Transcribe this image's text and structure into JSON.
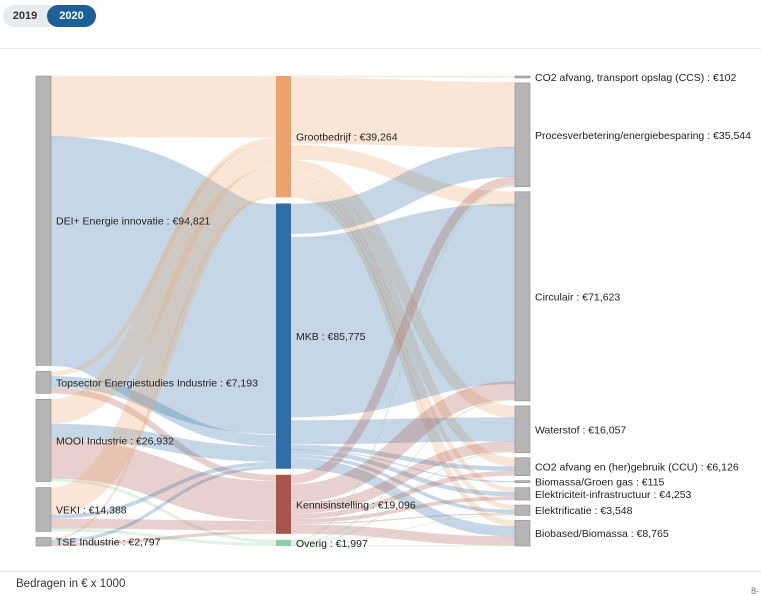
{
  "year_toggle": {
    "options": [
      "2019",
      "2020"
    ],
    "selected": "2020"
  },
  "footnote": "Bedragen in € x 1000",
  "corner_mark": "8-",
  "colors": {
    "node_grey": "#b5b5b5",
    "grootbedrijf": "#eaa46b",
    "mkb": "#2f6fa5",
    "kennisinstelling": "#a8564c",
    "overig": "#8fcfa2"
  },
  "chart_data": {
    "type": "sankey",
    "unit": "€ x 1000",
    "nodes": [
      {
        "id": "dei",
        "label": "DEI+ Energie innovatie : €94,821",
        "value": 94821,
        "column": 0,
        "color": "grey"
      },
      {
        "id": "tse_studies",
        "label": "Topsector Energiestudies Industrie : €7,193",
        "value": 7193,
        "column": 0,
        "color": "grey"
      },
      {
        "id": "mooi",
        "label": "MOOI Industrie : €26,932",
        "value": 26932,
        "column": 0,
        "color": "grey"
      },
      {
        "id": "veki",
        "label": "VEKI : €14,388",
        "value": 14388,
        "column": 0,
        "color": "grey"
      },
      {
        "id": "tse_ind",
        "label": "TSE Industrie : €2,797",
        "value": 2797,
        "column": 0,
        "color": "grey"
      },
      {
        "id": "groot",
        "label": "Grootbedrijf : €39,264",
        "value": 39264,
        "column": 1,
        "color": "grootbedrijf"
      },
      {
        "id": "mkb",
        "label": "MKB : €85,775",
        "value": 85775,
        "column": 1,
        "color": "mkb"
      },
      {
        "id": "kennis",
        "label": "Kennisinstelling : €19,096",
        "value": 19096,
        "column": 1,
        "color": "kennisinstelling"
      },
      {
        "id": "overig",
        "label": "Overig : €1,997",
        "value": 1997,
        "column": 1,
        "color": "overig"
      },
      {
        "id": "ccs",
        "label": "CO2 afvang, transport opslag (CCS) : €102",
        "value": 102,
        "column": 2,
        "color": "grey"
      },
      {
        "id": "proces",
        "label": "Procesverbetering/energiebesparing : €35,544",
        "value": 35544,
        "column": 2,
        "color": "grey"
      },
      {
        "id": "circulair",
        "label": "Circulair : €71,623",
        "value": 71623,
        "column": 2,
        "color": "grey"
      },
      {
        "id": "waterstof",
        "label": "Waterstof : €16,057",
        "value": 16057,
        "column": 2,
        "color": "grey"
      },
      {
        "id": "ccu",
        "label": "CO2 afvang en (her)gebruik (CCU) : €6,126",
        "value": 6126,
        "column": 2,
        "color": "grey"
      },
      {
        "id": "biogas",
        "label": "Biomassa/Groen gas : €115",
        "value": 115,
        "column": 2,
        "color": "grey"
      },
      {
        "id": "elinfra",
        "label": "Elektriciteit-infrastructuur : €4,253",
        "value": 4253,
        "column": 2,
        "color": "grey"
      },
      {
        "id": "elek",
        "label": "Elektrificatie : €3,548",
        "value": 3548,
        "column": 2,
        "color": "grey"
      },
      {
        "id": "biobased",
        "label": "Biobased/Biomassa : €8,765",
        "value": 8765,
        "column": 2,
        "color": "grey"
      }
    ],
    "links": [
      {
        "source": "dei",
        "target": "groot",
        "value": 20000
      },
      {
        "source": "dei",
        "target": "mkb",
        "value": 74821
      },
      {
        "source": "tse_studies",
        "target": "groot",
        "value": 1500
      },
      {
        "source": "tse_studies",
        "target": "mkb",
        "value": 3693
      },
      {
        "source": "tse_studies",
        "target": "kennis",
        "value": 2000
      },
      {
        "source": "mooi",
        "target": "groot",
        "value": 8000
      },
      {
        "source": "mooi",
        "target": "mkb",
        "value": 5000
      },
      {
        "source": "mooi",
        "target": "kennis",
        "value": 12932
      },
      {
        "source": "mooi",
        "target": "overig",
        "value": 1000
      },
      {
        "source": "veki",
        "target": "groot",
        "value": 8964
      },
      {
        "source": "veki",
        "target": "mkb",
        "value": 1261
      },
      {
        "source": "veki",
        "target": "kennis",
        "value": 3166
      },
      {
        "source": "veki",
        "target": "overig",
        "value": 997
      },
      {
        "source": "tse_ind",
        "target": "groot",
        "value": 800
      },
      {
        "source": "tse_ind",
        "target": "mkb",
        "value": 1000
      },
      {
        "source": "tse_ind",
        "target": "kennis",
        "value": 997
      },
      {
        "source": "groot",
        "target": "ccs",
        "value": 102
      },
      {
        "source": "groot",
        "target": "proces",
        "value": 22000
      },
      {
        "source": "groot",
        "target": "circulair",
        "value": 5000
      },
      {
        "source": "groot",
        "target": "waterstof",
        "value": 4000
      },
      {
        "source": "groot",
        "target": "ccu",
        "value": 3000
      },
      {
        "source": "groot",
        "target": "elinfra",
        "value": 1500
      },
      {
        "source": "groot",
        "target": "elek",
        "value": 1662
      },
      {
        "source": "groot",
        "target": "biobased",
        "value": 2000
      },
      {
        "source": "mkb",
        "target": "proces",
        "value": 10000
      },
      {
        "source": "mkb",
        "target": "circulair",
        "value": 60000
      },
      {
        "source": "mkb",
        "target": "waterstof",
        "value": 8000
      },
      {
        "source": "mkb",
        "target": "ccu",
        "value": 1500
      },
      {
        "source": "mkb",
        "target": "biogas",
        "value": 115
      },
      {
        "source": "mkb",
        "target": "elinfra",
        "value": 1500
      },
      {
        "source": "mkb",
        "target": "elek",
        "value": 1160
      },
      {
        "source": "mkb",
        "target": "biobased",
        "value": 3500
      },
      {
        "source": "kennis",
        "target": "proces",
        "value": 3000
      },
      {
        "source": "kennis",
        "target": "circulair",
        "value": 6123
      },
      {
        "source": "kennis",
        "target": "waterstof",
        "value": 3557
      },
      {
        "source": "kennis",
        "target": "ccu",
        "value": 1626
      },
      {
        "source": "kennis",
        "target": "elinfra",
        "value": 1253
      },
      {
        "source": "kennis",
        "target": "elek",
        "value": 426
      },
      {
        "source": "kennis",
        "target": "biobased",
        "value": 3111
      },
      {
        "source": "overig",
        "target": "proces",
        "value": 544
      },
      {
        "source": "overig",
        "target": "circulair",
        "value": 500
      },
      {
        "source": "overig",
        "target": "waterstof",
        "value": 500
      },
      {
        "source": "overig",
        "target": "elek",
        "value": 300
      },
      {
        "source": "overig",
        "target": "biobased",
        "value": 153
      }
    ]
  }
}
